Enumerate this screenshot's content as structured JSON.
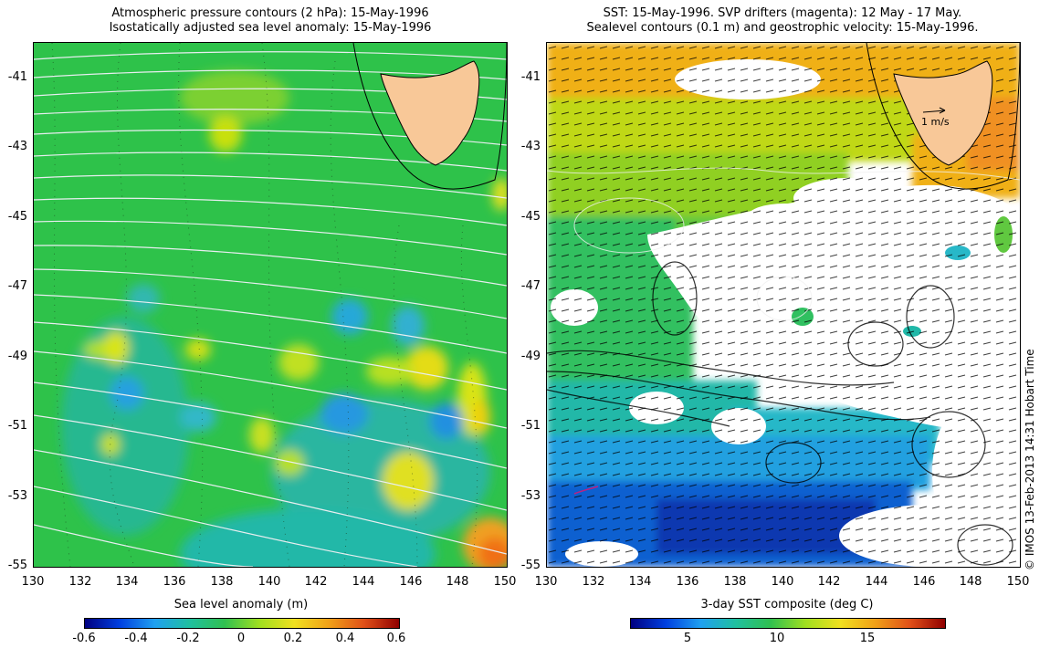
{
  "left_panel": {
    "title_line1": "Atmospheric pressure contours (2 hPa): 15-May-1996",
    "title_line2": "Isostatically adjusted sea level anomaly: 15-May-1996",
    "y_ticks": [
      "-41",
      "-43",
      "-45",
      "-47",
      "-49",
      "-51",
      "-53",
      "-55"
    ],
    "x_ticks": [
      "130",
      "132",
      "134",
      "136",
      "138",
      "140",
      "142",
      "144",
      "146",
      "148",
      "150"
    ],
    "colorbar_title": "Sea level anomaly (m)",
    "colorbar_labels": [
      "-0.6",
      "-0.4",
      "-0.2",
      "0",
      "0.2",
      "0.4",
      "0.6"
    ]
  },
  "right_panel": {
    "title_line1": "SST: 15-May-1996. SVP drifters (magenta): 12 May - 17 May.",
    "title_line2": "Sealevel contours (0.1 m) and geostrophic velocity: 15-May-1996.",
    "y_ticks": [
      "-41",
      "-43",
      "-45",
      "-47",
      "-49",
      "-51",
      "-53",
      "-55"
    ],
    "x_ticks": [
      "130",
      "132",
      "134",
      "136",
      "138",
      "140",
      "142",
      "144",
      "146",
      "148",
      "150"
    ],
    "scale_label": "1 m/s",
    "colorbar_title": "3-day SST composite (deg C)",
    "colorbar_labels": [
      "5",
      "10",
      "15"
    ]
  },
  "credit": "© IMOS 13-Feb-2013 14:31 Hobart Time",
  "colors": {
    "land": "#f8c898",
    "ocean_base": "#30c060",
    "cloud": "#ffffff",
    "contour": "#e8e8e8"
  }
}
